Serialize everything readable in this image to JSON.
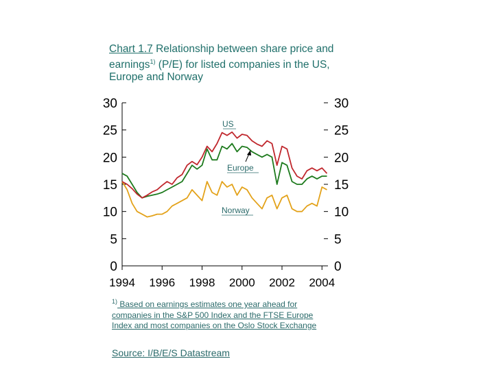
{
  "title": {
    "chart_no": "Chart 1.7",
    "text_a": " Relationship between share price and earnings",
    "sup": "1)",
    "text_b": " (P/E) for listed companies in the US, Europe and Norway"
  },
  "footnote": {
    "sup": "1)",
    "text": " Based on earnings estimates one year ahead for companies in the S&P 500 Index and the FTSE Europe Index and most companies on the Oslo Stock Exchange"
  },
  "source": "Source: I/B/E/S Datastream",
  "colors": {
    "us": "#c0272d",
    "europe": "#1d7a1d",
    "norway": "#e3a21a",
    "text": "#2a6a6a"
  },
  "chart_data": {
    "type": "line",
    "title": "Relationship between share price and earnings (P/E) for listed companies in the US, Europe and Norway",
    "xlim": [
      1994,
      2004.3
    ],
    "ylim": [
      0,
      30
    ],
    "x_ticks": [
      "1994",
      "1996",
      "1998",
      "2000",
      "2002",
      "2004"
    ],
    "y_ticks": [
      "0",
      "5",
      "10",
      "15",
      "20",
      "25",
      "30"
    ],
    "grid": false,
    "series": [
      {
        "name": "US",
        "x": [
          1994.0,
          1994.25,
          1994.5,
          1994.75,
          1995.0,
          1995.25,
          1995.5,
          1995.75,
          1996.0,
          1996.25,
          1996.5,
          1996.75,
          1997.0,
          1997.25,
          1997.5,
          1997.75,
          1998.0,
          1998.25,
          1998.5,
          1998.75,
          1999.0,
          1999.25,
          1999.5,
          1999.75,
          2000.0,
          2000.25,
          2000.5,
          2000.75,
          2001.0,
          2001.25,
          2001.5,
          2001.75,
          2002.0,
          2002.25,
          2002.5,
          2002.75,
          2003.0,
          2003.25,
          2003.5,
          2003.75,
          2004.0,
          2004.25
        ],
        "values": [
          15.5,
          15.0,
          14.2,
          13.2,
          12.5,
          13.0,
          13.6,
          14.0,
          14.8,
          15.5,
          15.0,
          16.2,
          16.8,
          18.5,
          19.2,
          18.6,
          20.0,
          22.0,
          21.0,
          22.5,
          24.5,
          24.0,
          24.6,
          23.5,
          24.2,
          24.0,
          23.0,
          22.4,
          22.0,
          23.0,
          22.5,
          18.5,
          22.0,
          21.5,
          18.0,
          16.5,
          16.0,
          17.5,
          18.0,
          17.5,
          18.0,
          17.0
        ]
      },
      {
        "name": "Europe",
        "x": [
          1994.0,
          1994.25,
          1994.5,
          1994.75,
          1995.0,
          1995.25,
          1995.5,
          1995.75,
          1996.0,
          1996.25,
          1996.5,
          1996.75,
          1997.0,
          1997.25,
          1997.5,
          1997.75,
          1998.0,
          1998.25,
          1998.5,
          1998.75,
          1999.0,
          1999.25,
          1999.5,
          1999.75,
          2000.0,
          2000.25,
          2000.5,
          2000.75,
          2001.0,
          2001.25,
          2001.5,
          2001.75,
          2002.0,
          2002.25,
          2002.5,
          2002.75,
          2003.0,
          2003.25,
          2003.5,
          2003.75,
          2004.0,
          2004.25
        ],
        "values": [
          17.0,
          16.5,
          15.0,
          13.5,
          12.5,
          12.8,
          13.0,
          13.2,
          13.5,
          14.0,
          14.5,
          15.0,
          15.5,
          17.0,
          18.5,
          17.8,
          18.5,
          21.5,
          19.5,
          19.5,
          22.0,
          21.5,
          22.5,
          21.0,
          22.0,
          21.8,
          21.0,
          20.5,
          20.0,
          20.5,
          20.0,
          15.0,
          19.0,
          18.5,
          15.5,
          15.0,
          15.0,
          16.0,
          16.5,
          16.0,
          16.5,
          16.5
        ]
      },
      {
        "name": "Norway",
        "x": [
          1994.0,
          1994.25,
          1994.5,
          1994.75,
          1995.0,
          1995.25,
          1995.5,
          1995.75,
          1996.0,
          1996.25,
          1996.5,
          1996.75,
          1997.0,
          1997.25,
          1997.5,
          1997.75,
          1998.0,
          1998.25,
          1998.5,
          1998.75,
          1999.0,
          1999.25,
          1999.5,
          1999.75,
          2000.0,
          2000.25,
          2000.5,
          2000.75,
          2001.0,
          2001.25,
          2001.5,
          2001.75,
          2002.0,
          2002.25,
          2002.5,
          2002.75,
          2003.0,
          2003.25,
          2003.5,
          2003.75,
          2004.0,
          2004.25
        ],
        "values": [
          15.5,
          14.0,
          11.5,
          10.0,
          9.5,
          9.0,
          9.2,
          9.5,
          9.5,
          10.0,
          11.0,
          11.5,
          12.0,
          12.5,
          14.0,
          13.0,
          12.0,
          15.5,
          13.5,
          13.0,
          15.5,
          14.5,
          15.0,
          13.0,
          14.5,
          14.0,
          12.5,
          11.5,
          10.5,
          12.5,
          13.0,
          10.5,
          12.5,
          13.0,
          10.5,
          10.0,
          10.0,
          11.0,
          11.5,
          11.0,
          14.5,
          14.0
        ]
      }
    ]
  }
}
